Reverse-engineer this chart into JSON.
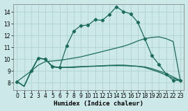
{
  "xlabel": "Humidex (Indice chaleur)",
  "bg_color": "#cce8e8",
  "line_color": "#1a6b5a",
  "grid_color": "#aacece",
  "xlim": [
    -0.5,
    23.5
  ],
  "ylim": [
    7.4,
    14.7
  ],
  "xticks": [
    0,
    1,
    2,
    3,
    4,
    5,
    6,
    7,
    8,
    9,
    10,
    11,
    12,
    13,
    14,
    15,
    16,
    17,
    18,
    19,
    20,
    21,
    22,
    23
  ],
  "yticks": [
    8,
    9,
    10,
    11,
    12,
    13,
    14
  ],
  "series": [
    {
      "x": [
        0,
        2,
        3,
        4,
        5,
        6,
        7,
        8,
        9,
        10,
        11,
        12,
        13,
        14,
        15,
        16,
        17,
        18,
        19,
        20,
        21,
        22,
        23
      ],
      "y": [
        8.1,
        9.0,
        10.1,
        10.0,
        9.4,
        9.3,
        11.15,
        12.4,
        12.85,
        12.9,
        13.35,
        13.3,
        13.8,
        14.45,
        14.05,
        13.85,
        13.15,
        11.75,
        10.3,
        9.55,
        8.75,
        8.2,
        8.2
      ],
      "marker": true
    },
    {
      "x": [
        0,
        1,
        2,
        3,
        4,
        5,
        6,
        7,
        8,
        9,
        10,
        11,
        12,
        13,
        14,
        15,
        16,
        17,
        18,
        19,
        20,
        21,
        22,
        23
      ],
      "y": [
        8.1,
        7.7,
        9.0,
        9.5,
        9.8,
        9.85,
        9.9,
        10.0,
        10.1,
        10.2,
        10.35,
        10.5,
        10.65,
        10.8,
        10.95,
        11.1,
        11.3,
        11.55,
        11.75,
        11.85,
        11.9,
        11.75,
        11.5,
        8.2
      ],
      "marker": false
    },
    {
      "x": [
        0,
        1,
        2,
        3,
        4,
        5,
        6,
        7,
        8,
        9,
        10,
        11,
        12,
        13,
        14,
        15,
        16,
        17,
        18,
        19,
        20,
        21,
        22,
        23
      ],
      "y": [
        8.1,
        7.7,
        9.0,
        10.1,
        10.0,
        9.35,
        9.3,
        9.3,
        9.3,
        9.35,
        9.38,
        9.4,
        9.42,
        9.45,
        9.45,
        9.45,
        9.42,
        9.4,
        9.35,
        9.2,
        9.0,
        8.8,
        8.5,
        8.2
      ],
      "marker": false
    },
    {
      "x": [
        0,
        1,
        2,
        3,
        4,
        5,
        6,
        7,
        8,
        9,
        10,
        11,
        12,
        13,
        14,
        15,
        16,
        17,
        18,
        19,
        20,
        21,
        22,
        23
      ],
      "y": [
        8.1,
        7.7,
        9.0,
        10.1,
        10.0,
        9.35,
        9.3,
        9.32,
        9.35,
        9.38,
        9.4,
        9.42,
        9.45,
        9.48,
        9.5,
        9.5,
        9.45,
        9.4,
        9.3,
        9.1,
        8.9,
        8.65,
        8.38,
        8.2
      ],
      "marker": false
    }
  ]
}
